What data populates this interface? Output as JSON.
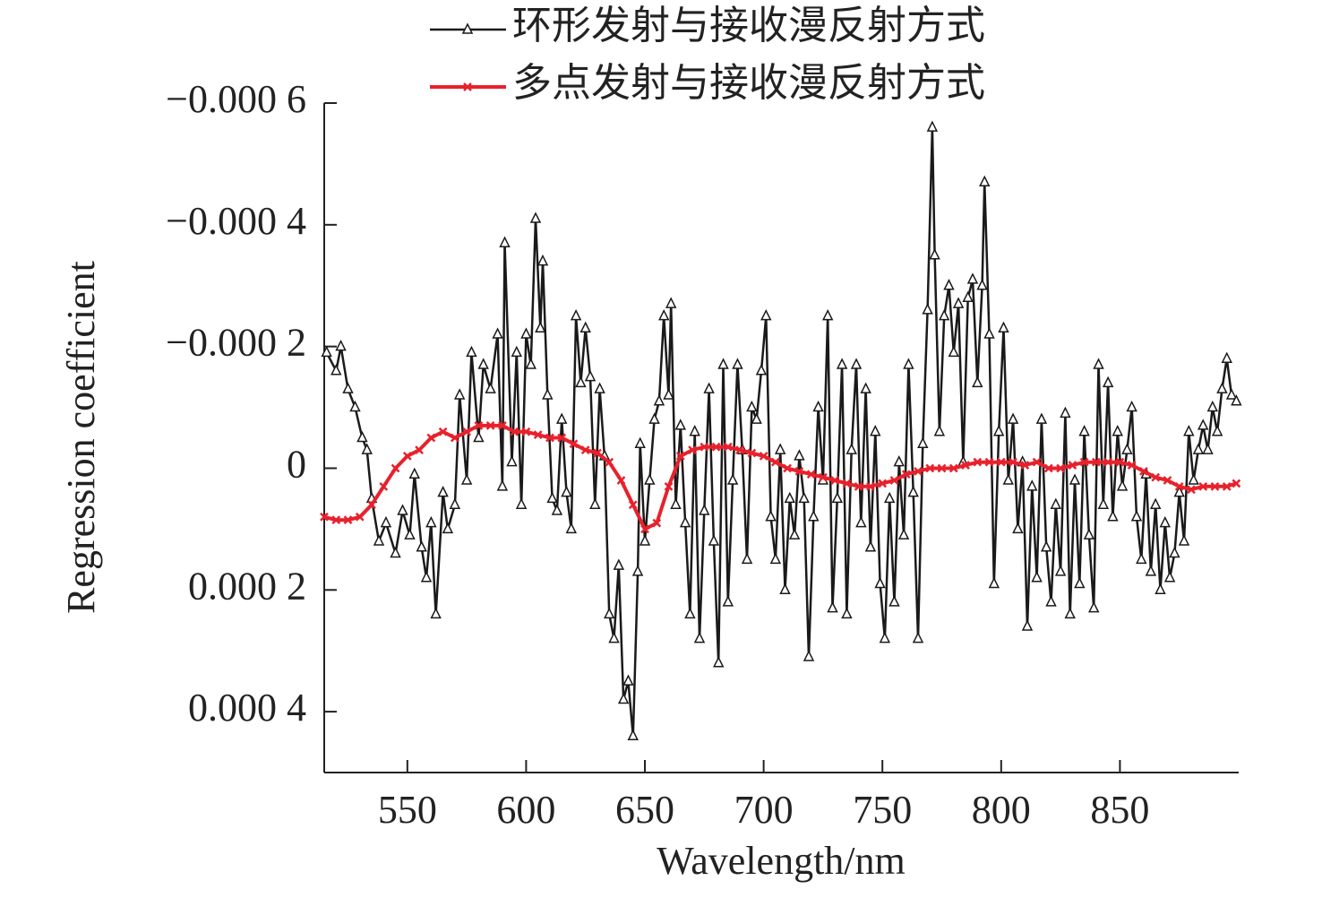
{
  "chart_data": {
    "type": "line",
    "xlabel": "Wavelength/nm",
    "ylabel": "Regression coefficient",
    "xlim": [
      515,
      900
    ],
    "xticks": [
      550,
      600,
      650,
      700,
      750,
      800,
      850
    ],
    "ylim": [
      -0.0006,
      0.0005
    ],
    "y_inverted": true,
    "yticks": [
      {
        "value": -0.0006,
        "label": "−0.000 6"
      },
      {
        "value": -0.0004,
        "label": "−0.000 4"
      },
      {
        "value": -0.0002,
        "label": "−0.000 2"
      },
      0,
      {
        "value": 0.0002,
        "label": "0.000 2"
      },
      {
        "value": 0.0004,
        "label": "0.000 4"
      }
    ],
    "series": [
      {
        "name": "环形发射与接收漫反射方式",
        "color": "#1a1a1a",
        "marker": "triangle",
        "x": [
          516,
          520,
          522,
          525,
          528,
          531,
          533,
          535,
          538,
          541,
          545,
          548,
          551,
          553,
          556,
          558,
          560,
          562,
          565,
          567,
          570,
          572,
          575,
          577,
          580,
          582,
          585,
          588,
          590,
          591,
          594,
          596,
          598,
          600,
          602,
          604,
          606,
          607,
          609,
          611,
          613,
          615,
          617,
          619,
          621,
          623,
          625,
          627,
          629,
          631,
          633,
          635,
          637,
          639,
          641,
          643,
          645,
          647,
          648,
          650,
          652,
          654,
          656,
          658,
          660,
          661,
          663,
          665,
          667,
          669,
          671,
          673,
          675,
          677,
          679,
          681,
          683,
          685,
          687,
          689,
          691,
          693,
          695,
          697,
          699,
          701,
          703,
          705,
          707,
          709,
          711,
          713,
          715,
          717,
          719,
          721,
          723,
          725,
          727,
          729,
          731,
          733,
          735,
          737,
          739,
          741,
          743,
          745,
          747,
          749,
          751,
          753,
          755,
          757,
          759,
          761,
          763,
          765,
          767,
          769,
          771,
          772,
          774,
          776,
          778,
          780,
          782,
          784,
          786,
          788,
          790,
          792,
          793,
          795,
          797,
          799,
          801,
          803,
          805,
          807,
          809,
          811,
          813,
          815,
          817,
          819,
          821,
          823,
          825,
          827,
          829,
          831,
          833,
          835,
          837,
          839,
          841,
          843,
          845,
          847,
          849,
          851,
          853,
          855,
          857,
          859,
          861,
          863,
          865,
          867,
          869,
          871,
          873,
          875,
          877,
          879,
          881,
          883,
          885,
          887,
          889,
          891,
          893,
          895,
          897,
          899
        ],
        "values": [
          -0.00019,
          -0.00016,
          -0.0002,
          -0.00013,
          -0.0001,
          -5e-05,
          -3e-05,
          5e-05,
          0.00012,
          9e-05,
          0.00014,
          7e-05,
          0.00011,
          1e-05,
          0.00013,
          0.00018,
          9e-05,
          0.00024,
          4e-05,
          0.0001,
          6e-05,
          -0.00012,
          2e-05,
          -0.00019,
          -5e-05,
          -0.00017,
          -0.00013,
          -0.00022,
          3e-05,
          -0.00037,
          -1e-05,
          -0.00019,
          6e-05,
          -0.00022,
          -0.00017,
          -0.00041,
          -0.00023,
          -0.00034,
          -0.00012,
          5e-05,
          7e-05,
          -8e-05,
          4e-05,
          0.0001,
          -0.00025,
          -0.00014,
          -0.00023,
          -0.00015,
          6e-05,
          -0.00013,
          -2e-05,
          0.00024,
          0.00028,
          0.00016,
          0.00038,
          0.00035,
          0.00044,
          0.00017,
          -4e-05,
          0.00012,
          2e-05,
          -8e-05,
          -0.00011,
          -0.00025,
          -0.00012,
          -0.00027,
          6e-05,
          -7e-05,
          9e-05,
          0.00024,
          -6e-05,
          0.00028,
          7e-05,
          -0.00013,
          0.00012,
          0.00032,
          -0.00017,
          0.00022,
          2e-05,
          -0.00017,
          -3e-05,
          0.00015,
          -0.0001,
          -8e-05,
          -0.00016,
          -0.00025,
          8e-05,
          0.00015,
          -3e-05,
          0.0002,
          5e-05,
          0.00011,
          -2e-05,
          5e-05,
          0.00031,
          8e-05,
          -0.0001,
          2e-05,
          -0.00025,
          0.00023,
          5e-05,
          -0.00017,
          0.00024,
          -3e-05,
          -0.00017,
          9e-05,
          -0.00013,
          0.00013,
          -6e-05,
          0.00019,
          0.00028,
          5e-05,
          0.00022,
          -1e-05,
          0.00011,
          -0.00017,
          4e-05,
          0.00028,
          -4e-05,
          -0.00026,
          -0.00056,
          -0.00035,
          -6e-05,
          -0.00025,
          -0.0003,
          -0.00019,
          -0.00027,
          -1e-05,
          -0.00028,
          -0.00031,
          -0.00014,
          -0.0003,
          -0.00047,
          -0.00022,
          0.00019,
          -6e-05,
          -0.00023,
          2e-05,
          -8e-05,
          0.0001,
          -1e-05,
          0.00026,
          3e-05,
          0.00018,
          -8e-05,
          0.00013,
          0.00022,
          6e-05,
          0.00017,
          -9e-05,
          0.00024,
          2e-05,
          0.00019,
          -6e-05,
          0.00011,
          0.00023,
          -0.00017,
          6e-05,
          -0.00014,
          8e-05,
          -6e-05,
          3e-05,
          -3e-05,
          -0.0001,
          8e-05,
          0.00015,
          1e-05,
          0.00017,
          6e-05,
          0.0002,
          9e-05,
          0.00018,
          0.00014,
          4e-05,
          0.00012,
          -6e-05,
          2e-05,
          -3e-05,
          -7e-05,
          -3e-05,
          -0.0001,
          -6e-05,
          -0.00013,
          -0.00018,
          -0.00012,
          -0.00011
        ]
      },
      {
        "name": "多点发射与接收漫反射方式",
        "color": "#e8212c",
        "marker": "x",
        "x": [
          515,
          520,
          525,
          530,
          535,
          540,
          545,
          550,
          555,
          560,
          565,
          570,
          575,
          580,
          585,
          590,
          595,
          600,
          605,
          610,
          615,
          620,
          625,
          630,
          635,
          640,
          645,
          650,
          655,
          660,
          665,
          670,
          675,
          680,
          685,
          690,
          695,
          700,
          705,
          710,
          715,
          720,
          725,
          730,
          735,
          740,
          745,
          750,
          755,
          760,
          765,
          770,
          775,
          780,
          785,
          790,
          795,
          800,
          805,
          810,
          815,
          820,
          825,
          830,
          835,
          840,
          845,
          850,
          855,
          860,
          865,
          870,
          875,
          880,
          885,
          890,
          895,
          899
        ],
        "values": [
          8e-05,
          8.5e-05,
          8.5e-05,
          8e-05,
          6e-05,
          3e-05,
          0,
          -2e-05,
          -3e-05,
          -5e-05,
          -6e-05,
          -5e-05,
          -6e-05,
          -7e-05,
          -7e-05,
          -7e-05,
          -6e-05,
          -6e-05,
          -5.5e-05,
          -5e-05,
          -5e-05,
          -4e-05,
          -3e-05,
          -2.5e-05,
          -1e-05,
          2e-05,
          6e-05,
          0.0001,
          9e-05,
          3e-05,
          -2e-05,
          -3e-05,
          -3.5e-05,
          -3.5e-05,
          -3.5e-05,
          -3e-05,
          -2.5e-05,
          -2e-05,
          -1e-05,
          0,
          5e-06,
          1e-05,
          1.5e-05,
          2e-05,
          2.5e-05,
          3e-05,
          3e-05,
          2.5e-05,
          2e-05,
          1e-05,
          5e-06,
          0,
          0,
          0,
          -5e-06,
          -1e-05,
          -1e-05,
          -1e-05,
          -1e-05,
          -5e-06,
          -1e-05,
          0,
          0,
          -5e-06,
          -1e-05,
          -1e-05,
          -1e-05,
          -1e-05,
          -5e-06,
          5e-06,
          1.5e-05,
          2e-05,
          3e-05,
          3.5e-05,
          3e-05,
          3e-05,
          3e-05,
          2.5e-05
        ]
      }
    ]
  }
}
